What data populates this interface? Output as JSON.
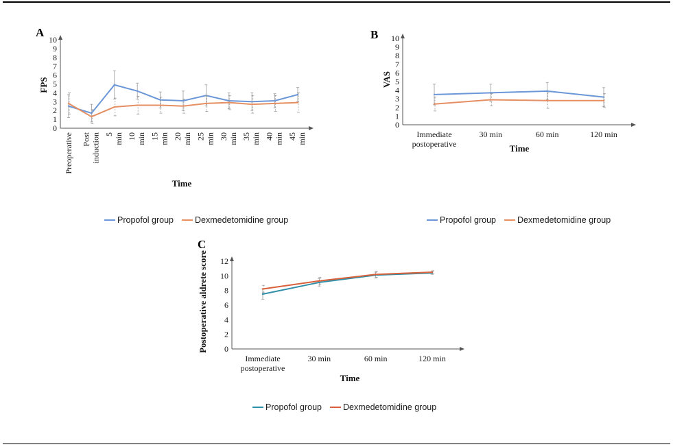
{
  "colors": {
    "propofol": "#6b97d8",
    "dexmedetomidine": "#e58f63",
    "propofol_c": "#2f8fa8",
    "dexmedetomidine_c": "#d8603a"
  },
  "chart_data": [
    {
      "panel": "A",
      "type": "line",
      "ylabel": "FPS",
      "xlabel": "Time",
      "ylim": [
        0,
        10
      ],
      "yticks": [
        0,
        1,
        2,
        3,
        4,
        5,
        6,
        7,
        8,
        9,
        10
      ],
      "categories": [
        "Preoperative",
        "Post induction",
        "5 min",
        "10 min",
        "15 min",
        "20 min",
        "25 min",
        "30 min",
        "35 min",
        "40 min",
        "45 min"
      ],
      "series": [
        {
          "name": "Propofol group",
          "values": [
            2.5,
            1.7,
            4.9,
            4.2,
            3.2,
            3.1,
            3.7,
            3.1,
            3.0,
            3.1,
            3.8
          ],
          "error": [
            1.3,
            1.0,
            1.6,
            0.9,
            0.9,
            1.1,
            1.2,
            0.9,
            1.0,
            0.8,
            0.8
          ]
        },
        {
          "name": "Dexmedetomidine group",
          "values": [
            2.8,
            1.3,
            2.4,
            2.6,
            2.6,
            2.5,
            2.8,
            2.9,
            2.7,
            2.8,
            2.9
          ],
          "error": [
            1.2,
            0.8,
            1.0,
            1.0,
            0.9,
            0.8,
            0.9,
            0.8,
            1.0,
            0.9,
            1.1
          ]
        }
      ],
      "legend": "bottom"
    },
    {
      "panel": "B",
      "type": "line",
      "ylabel": "VAS",
      "xlabel": "Time",
      "ylim": [
        0,
        10
      ],
      "yticks": [
        0,
        1,
        2,
        3,
        4,
        5,
        6,
        7,
        8,
        9,
        10
      ],
      "categories": [
        "Immediate postoperative",
        "30 min",
        "60 min",
        "120 min"
      ],
      "series": [
        {
          "name": "Propofol group",
          "values": [
            3.5,
            3.7,
            3.9,
            3.2
          ],
          "error": [
            1.2,
            1.0,
            1.0,
            1.1
          ]
        },
        {
          "name": "Dexmedetomidine group",
          "values": [
            2.4,
            2.9,
            2.8,
            2.8
          ],
          "error": [
            0.8,
            0.7,
            0.9,
            0.8
          ]
        }
      ],
      "legend": "bottom"
    },
    {
      "panel": "C",
      "type": "line",
      "ylabel": "Postoperative aldrete score",
      "xlabel": "Time",
      "ylim": [
        0,
        12
      ],
      "yticks": [
        0,
        2,
        4,
        6,
        8,
        10,
        12
      ],
      "categories": [
        "Immediate postoperative",
        "30 min",
        "60 min",
        "120 min"
      ],
      "series": [
        {
          "name": "Propofol group",
          "values": [
            7.5,
            9.1,
            10.1,
            10.4
          ],
          "error": [
            0.7,
            0.5,
            0.4,
            0.2
          ]
        },
        {
          "name": "Dexmedetomidine group",
          "values": [
            8.2,
            9.3,
            10.2,
            10.5
          ],
          "error": [
            0.5,
            0.5,
            0.4,
            0.2
          ]
        }
      ],
      "legend": "bottom"
    }
  ]
}
